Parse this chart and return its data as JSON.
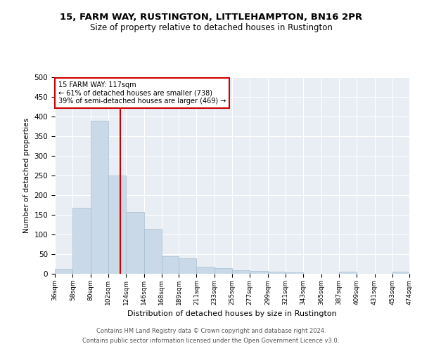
{
  "title": "15, FARM WAY, RUSTINGTON, LITTLEHAMPTON, BN16 2PR",
  "subtitle": "Size of property relative to detached houses in Rustington",
  "xlabel": "Distribution of detached houses by size in Rustington",
  "ylabel": "Number of detached properties",
  "bar_color": "#c9d9e8",
  "bar_edge_color": "#a8bfd0",
  "vline_x": 117,
  "vline_color": "#cc0000",
  "annotation_title": "15 FARM WAY: 117sqm",
  "annotation_line1": "← 61% of detached houses are smaller (738)",
  "annotation_line2": "39% of semi-detached houses are larger (469) →",
  "annotation_box_color": "#ffffff",
  "annotation_box_edge": "#cc0000",
  "bin_edges": [
    36,
    58,
    80,
    102,
    124,
    146,
    168,
    189,
    211,
    233,
    255,
    277,
    299,
    321,
    343,
    365,
    387,
    409,
    431,
    453,
    474
  ],
  "bin_labels": [
    "36sqm",
    "58sqm",
    "80sqm",
    "102sqm",
    "124sqm",
    "146sqm",
    "168sqm",
    "189sqm",
    "211sqm",
    "233sqm",
    "255sqm",
    "277sqm",
    "299sqm",
    "321sqm",
    "343sqm",
    "365sqm",
    "387sqm",
    "409sqm",
    "431sqm",
    "453sqm",
    "474sqm"
  ],
  "counts": [
    13,
    167,
    390,
    250,
    157,
    115,
    44,
    39,
    18,
    15,
    9,
    7,
    5,
    3,
    0,
    0,
    5,
    0,
    0,
    5
  ],
  "ylim": [
    0,
    500
  ],
  "yticks": [
    0,
    50,
    100,
    150,
    200,
    250,
    300,
    350,
    400,
    450,
    500
  ],
  "background_color": "#e8eef4",
  "footer1": "Contains HM Land Registry data © Crown copyright and database right 2024.",
  "footer2": "Contains public sector information licensed under the Open Government Licence v3.0."
}
